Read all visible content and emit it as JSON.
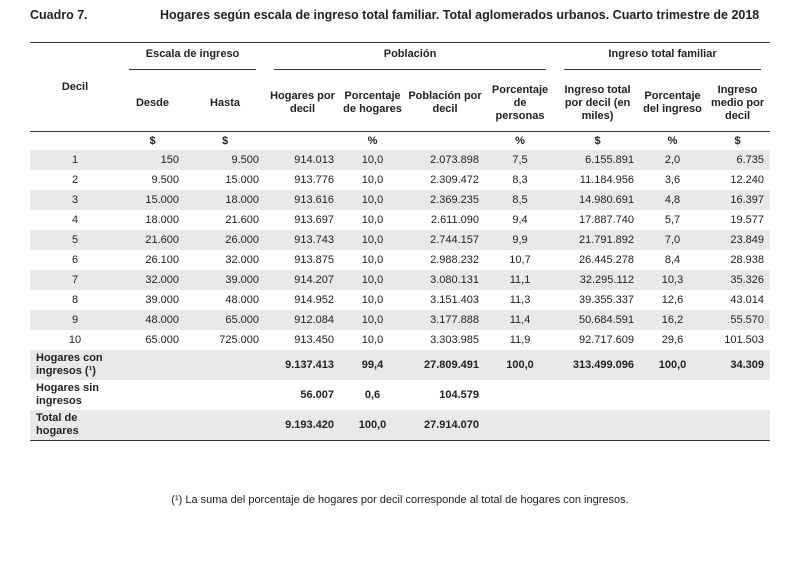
{
  "title": {
    "number": "Cuadro 7.",
    "text": "Hogares según escala de ingreso total familiar. Total aglomerados urbanos. Cuarto trimestre de 2018"
  },
  "headers": {
    "decil": "Decil",
    "groups": {
      "escala": "Escala de ingreso",
      "poblacion": "Población",
      "ingreso": "Ingreso total familiar"
    },
    "columns": [
      "Desde",
      "Hasta",
      "Hogares por decil",
      "Porcentaje de hogares",
      "Población por decil",
      "Porcentaje de personas",
      "Ingreso total por decil (en miles)",
      "Porcentaje del ingreso",
      "Ingreso medio por decil"
    ],
    "units": [
      "",
      "$",
      "$",
      "",
      "%",
      "",
      "%",
      "$",
      "%",
      "$"
    ]
  },
  "rows": [
    [
      "1",
      "150",
      "9.500",
      "914.013",
      "10,0",
      "2.073.898",
      "7,5",
      "6.155.891",
      "2,0",
      "6.735"
    ],
    [
      "2",
      "9.500",
      "15.000",
      "913.776",
      "10,0",
      "2.309.472",
      "8,3",
      "11.184.956",
      "3,6",
      "12.240"
    ],
    [
      "3",
      "15.000",
      "18.000",
      "913.616",
      "10,0",
      "2.369.235",
      "8,5",
      "14.980.691",
      "4,8",
      "16.397"
    ],
    [
      "4",
      "18.000",
      "21.600",
      "913.697",
      "10,0",
      "2.611.090",
      "9,4",
      "17.887.740",
      "5,7",
      "19.577"
    ],
    [
      "5",
      "21.600",
      "26.000",
      "913.743",
      "10,0",
      "2.744.157",
      "9,9",
      "21.791.892",
      "7,0",
      "23.849"
    ],
    [
      "6",
      "26.100",
      "32.000",
      "913.875",
      "10,0",
      "2.988.232",
      "10,7",
      "26.445.278",
      "8,4",
      "28.938"
    ],
    [
      "7",
      "32.000",
      "39.000",
      "914.207",
      "10,0",
      "3.080.131",
      "11,1",
      "32.295.112",
      "10,3",
      "35.326"
    ],
    [
      "8",
      "39.000",
      "48.000",
      "914.952",
      "10,0",
      "3.151.403",
      "11,3",
      "39.355.337",
      "12,6",
      "43.014"
    ],
    [
      "9",
      "48.000",
      "65.000",
      "912.084",
      "10,0",
      "3.177.888",
      "11,4",
      "50.684.591",
      "16,2",
      "55.570"
    ],
    [
      "10",
      "65.000",
      "725.000",
      "913.450",
      "10,0",
      "3.303.985",
      "11,9",
      "92.717.609",
      "29,6",
      "101.503"
    ]
  ],
  "summary": [
    [
      "Hogares con ingresos (¹)",
      "",
      "",
      "9.137.413",
      "99,4",
      "27.809.491",
      "100,0",
      "313.499.096",
      "100,0",
      "34.309"
    ],
    [
      "Hogares sin ingresos",
      "",
      "",
      "56.007",
      "0,6",
      "104.579",
      "",
      "",
      "",
      ""
    ],
    [
      "Total de hogares",
      "",
      "",
      "9.193.420",
      "100,0",
      "27.914.070",
      "",
      "",
      "",
      ""
    ]
  ],
  "footnote": "(¹) La suma del porcentaje de hogares por decil corresponde al total de hogares con ingresos."
}
